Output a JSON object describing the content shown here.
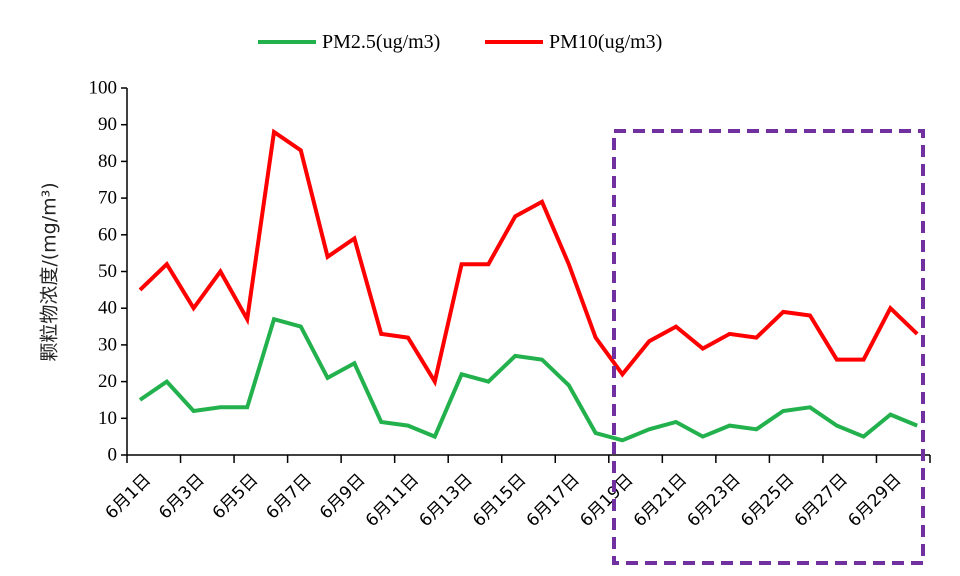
{
  "chart_data": {
    "type": "line",
    "title": "",
    "xlabel": "",
    "ylabel": "颗粒物浓度/(mg/m³)",
    "ylim": [
      0,
      100
    ],
    "yticks": [
      0,
      10,
      20,
      30,
      40,
      50,
      60,
      70,
      80,
      90,
      100
    ],
    "x_tick_labels": [
      "6月1日",
      "6月3日",
      "6月5日",
      "6月7日",
      "6月9日",
      "6月11日",
      "6月13日",
      "6月15日",
      "6月17日",
      "6月19日",
      "6月21日",
      "6月23日",
      "6月25日",
      "6月27日",
      "6月29日"
    ],
    "x": [
      1,
      2,
      3,
      4,
      5,
      6,
      7,
      8,
      9,
      10,
      11,
      12,
      13,
      14,
      15,
      16,
      17,
      18,
      19,
      20,
      21,
      22,
      23,
      24,
      25,
      26,
      27,
      28,
      29,
      30
    ],
    "legend_position": "top-center",
    "grid": false,
    "series": [
      {
        "name": "PM2.5(ug/m3)",
        "color": "#22b14c",
        "values": [
          15,
          20,
          12,
          13,
          13,
          37,
          35,
          21,
          25,
          9,
          8,
          5,
          22,
          20,
          27,
          26,
          19,
          6,
          4,
          7,
          9,
          5,
          8,
          7,
          12,
          13,
          8,
          5,
          11,
          8
        ]
      },
      {
        "name": "PM10(ug/m3)",
        "color": "#ff0000",
        "values": [
          45,
          52,
          40,
          50,
          37,
          88,
          83,
          54,
          59,
          33,
          32,
          20,
          52,
          52,
          65,
          69,
          52,
          32,
          22,
          31,
          35,
          29,
          33,
          32,
          39,
          38,
          26,
          26,
          40,
          33
        ]
      }
    ],
    "highlight_box": {
      "color": "#7030a0",
      "style": "dashed",
      "x_range": [
        19,
        30
      ]
    }
  }
}
